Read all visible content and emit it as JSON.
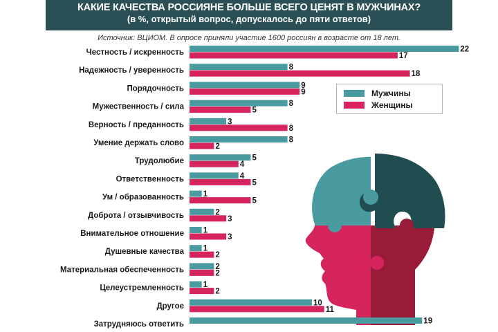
{
  "header": {
    "title": "КАКИЕ КАЧЕСТВА РОССИЯНЕ БОЛЬШЕ ВСЕГО ЦЕНЯТ В МУЖЧИНАХ?",
    "subtitle": "(в %, открытый вопрос, допускалось до пяти ответов)",
    "source": "Источник: ВЦИОМ. В опросе приняли участие 1600 россиян в возрасте от 18 лет."
  },
  "colors": {
    "header_bg": "#2a4f54",
    "men": "#4a9ba0",
    "women": "#d6245c",
    "head_dark": "#1f4d50",
    "head_teal": "#4a9ba0",
    "head_pink": "#d6245c",
    "head_crimson": "#9a1b38"
  },
  "chart_data": {
    "type": "bar",
    "orientation": "horizontal",
    "categories": [
      "Честность / искренность",
      "Надежность / уверенность",
      "Порядочность",
      "Мужественность / сила",
      "Верность / преданность",
      "Умение держать слово",
      "Трудолюбие",
      "Ответственность",
      "Ум / образованность",
      "Доброта / отзывчивость",
      "Внимательное отношение",
      "Душевные качества",
      "Материальная обеспеченность",
      "Целеустремленность",
      "Другое",
      "Затрудняюсь ответить"
    ],
    "series": [
      {
        "name": "Мужчины",
        "values": [
          22,
          8,
          9,
          8,
          3,
          8,
          5,
          4,
          1,
          2,
          1,
          1,
          2,
          1,
          10,
          19
        ]
      },
      {
        "name": "Женщины",
        "values": [
          17,
          18,
          9,
          5,
          8,
          2,
          4,
          5,
          5,
          3,
          3,
          2,
          2,
          2,
          11,
          null
        ]
      }
    ],
    "legend_placement": "top-right",
    "grid": false
  }
}
